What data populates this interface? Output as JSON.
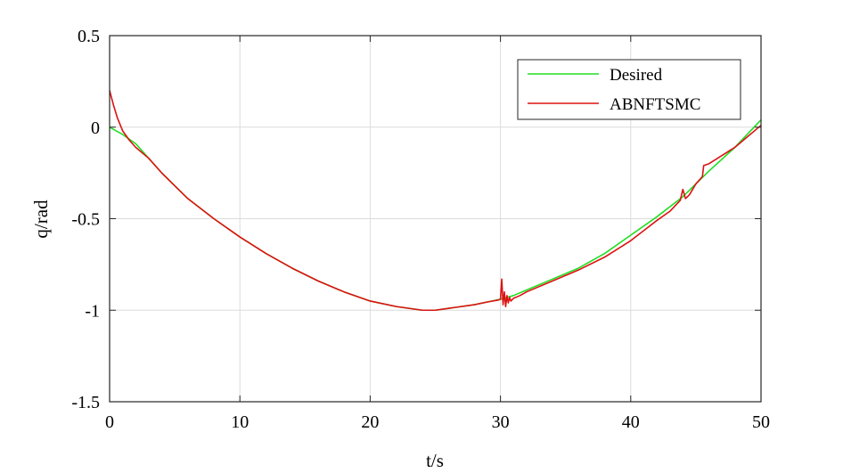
{
  "chart_data": {
    "type": "line",
    "xlabel": "t/s",
    "ylabel": "q/rad",
    "xlim": [
      0,
      50
    ],
    "ylim": [
      -1.5,
      0.5
    ],
    "xticks": [
      0,
      10,
      20,
      30,
      40,
      50
    ],
    "xtick_labels": [
      "0",
      "10",
      "20",
      "30",
      "40",
      "50"
    ],
    "yticks": [
      -1.5,
      -1,
      -0.5,
      0,
      0.5
    ],
    "ytick_labels": [
      "-1.5",
      "-1",
      "-0.5",
      "0",
      "0.5"
    ],
    "grid": true,
    "legend_position": "top-right",
    "series": [
      {
        "name": "Desired",
        "color": "#22dd22",
        "x": [
          0,
          1,
          2,
          3,
          4,
          5,
          6,
          8,
          10,
          12,
          14,
          16,
          18,
          20,
          22,
          24,
          25,
          26,
          28,
          29,
          30,
          31,
          32,
          34,
          36,
          38,
          40,
          42,
          44,
          46,
          48,
          50
        ],
        "y": [
          0,
          -0.04,
          -0.09,
          -0.17,
          -0.25,
          -0.32,
          -0.39,
          -0.5,
          -0.6,
          -0.69,
          -0.77,
          -0.84,
          -0.9,
          -0.95,
          -0.98,
          -1.0,
          -1.0,
          -0.99,
          -0.97,
          -0.955,
          -0.94,
          -0.92,
          -0.89,
          -0.83,
          -0.77,
          -0.69,
          -0.59,
          -0.49,
          -0.38,
          -0.24,
          -0.11,
          0.04
        ]
      },
      {
        "name": "ABNFTSMC",
        "color": "#dd1111",
        "x": [
          0,
          0.3,
          0.6,
          1,
          1.5,
          2,
          3,
          4,
          5,
          6,
          8,
          10,
          12,
          14,
          16,
          18,
          20,
          22,
          24,
          25,
          26,
          28,
          29,
          29.8,
          30,
          30.1,
          30.2,
          30.3,
          30.4,
          30.5,
          30.6,
          30.7,
          30.8,
          31,
          31.5,
          32,
          34,
          36,
          38,
          40,
          42,
          43,
          43.8,
          44,
          44.2,
          44.5,
          45,
          45.5,
          45.6,
          46,
          48,
          50
        ],
        "y": [
          0.2,
          0.12,
          0.05,
          -0.02,
          -0.07,
          -0.11,
          -0.17,
          -0.25,
          -0.32,
          -0.39,
          -0.5,
          -0.6,
          -0.69,
          -0.77,
          -0.84,
          -0.9,
          -0.95,
          -0.98,
          -1.0,
          -1.0,
          -0.99,
          -0.97,
          -0.955,
          -0.945,
          -0.94,
          -0.83,
          -0.97,
          -0.9,
          -0.98,
          -0.92,
          -0.96,
          -0.93,
          -0.95,
          -0.935,
          -0.92,
          -0.9,
          -0.84,
          -0.78,
          -0.71,
          -0.62,
          -0.51,
          -0.46,
          -0.4,
          -0.34,
          -0.39,
          -0.37,
          -0.31,
          -0.27,
          -0.21,
          -0.2,
          -0.11,
          0.01
        ]
      }
    ]
  }
}
